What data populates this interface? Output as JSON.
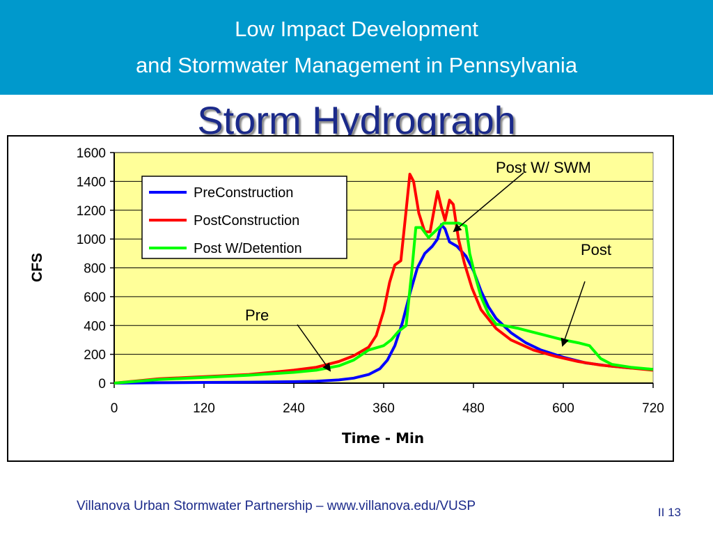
{
  "header": {
    "line1": "Low Impact Development",
    "line2": "and Stormwater Management in Pennsylvania"
  },
  "title": "Storm Hydrograph",
  "footer": "Villanova Urban Stormwater Partnership – www.villanova.edu/VUSP",
  "page_number": "II 13",
  "colors": {
    "header_bg": "#0099cc",
    "plot_bg": "#ffff99",
    "pre": "#0000ff",
    "post": "#ff0000",
    "detention": "#00ff00",
    "title": "#1b2a8a"
  },
  "chart_data": {
    "type": "line",
    "xlabel": "Time - Min",
    "ylabel": "CFS",
    "xlim": [
      0,
      720
    ],
    "ylim": [
      0,
      1600
    ],
    "xticks": [
      "0",
      "120",
      "240",
      "360",
      "480",
      "600",
      "720"
    ],
    "yticks": [
      "0",
      "200",
      "400",
      "600",
      "800",
      "1000",
      "1200",
      "1400",
      "1600"
    ],
    "grid": "horizontal",
    "legend_position": "top-left",
    "series": [
      {
        "name": "PreConstruction",
        "color": "#0000ff",
        "points": [
          [
            0,
            0
          ],
          [
            60,
            3
          ],
          [
            120,
            5
          ],
          [
            180,
            7
          ],
          [
            240,
            10
          ],
          [
            270,
            13
          ],
          [
            300,
            22
          ],
          [
            320,
            35
          ],
          [
            340,
            60
          ],
          [
            355,
            100
          ],
          [
            365,
            160
          ],
          [
            375,
            260
          ],
          [
            385,
            420
          ],
          [
            395,
            620
          ],
          [
            405,
            800
          ],
          [
            415,
            900
          ],
          [
            425,
            950
          ],
          [
            432,
            1000
          ],
          [
            437,
            1100
          ],
          [
            442,
            1070
          ],
          [
            448,
            980
          ],
          [
            458,
            950
          ],
          [
            470,
            880
          ],
          [
            480,
            780
          ],
          [
            490,
            640
          ],
          [
            500,
            530
          ],
          [
            510,
            450
          ],
          [
            530,
            350
          ],
          [
            550,
            280
          ],
          [
            570,
            230
          ],
          [
            600,
            180
          ],
          [
            630,
            140
          ],
          [
            660,
            120
          ],
          [
            690,
            105
          ],
          [
            720,
            95
          ]
        ]
      },
      {
        "name": "PostConstruction",
        "color": "#ff0000",
        "points": [
          [
            0,
            0
          ],
          [
            60,
            30
          ],
          [
            120,
            45
          ],
          [
            180,
            60
          ],
          [
            240,
            90
          ],
          [
            270,
            110
          ],
          [
            300,
            150
          ],
          [
            320,
            190
          ],
          [
            340,
            250
          ],
          [
            350,
            330
          ],
          [
            360,
            500
          ],
          [
            368,
            700
          ],
          [
            375,
            820
          ],
          [
            383,
            850
          ],
          [
            390,
            1200
          ],
          [
            395,
            1450
          ],
          [
            400,
            1400
          ],
          [
            407,
            1180
          ],
          [
            415,
            1050
          ],
          [
            422,
            1050
          ],
          [
            428,
            1220
          ],
          [
            432,
            1330
          ],
          [
            437,
            1220
          ],
          [
            442,
            1130
          ],
          [
            448,
            1270
          ],
          [
            453,
            1240
          ],
          [
            460,
            1000
          ],
          [
            468,
            830
          ],
          [
            478,
            660
          ],
          [
            490,
            510
          ],
          [
            510,
            380
          ],
          [
            530,
            300
          ],
          [
            560,
            230
          ],
          [
            590,
            185
          ],
          [
            620,
            150
          ],
          [
            650,
            125
          ],
          [
            680,
            110
          ],
          [
            720,
            90
          ]
        ]
      },
      {
        "name": "Post W/Detention",
        "color": "#00ff00",
        "points": [
          [
            0,
            0
          ],
          [
            60,
            25
          ],
          [
            120,
            40
          ],
          [
            180,
            55
          ],
          [
            240,
            75
          ],
          [
            270,
            90
          ],
          [
            300,
            120
          ],
          [
            320,
            160
          ],
          [
            340,
            230
          ],
          [
            360,
            260
          ],
          [
            370,
            300
          ],
          [
            380,
            360
          ],
          [
            390,
            400
          ],
          [
            398,
            800
          ],
          [
            403,
            1080
          ],
          [
            410,
            1080
          ],
          [
            420,
            1010
          ],
          [
            430,
            1060
          ],
          [
            440,
            1110
          ],
          [
            460,
            1110
          ],
          [
            470,
            1090
          ],
          [
            475,
            900
          ],
          [
            482,
            750
          ],
          [
            490,
            600
          ],
          [
            500,
            480
          ],
          [
            510,
            410
          ],
          [
            540,
            380
          ],
          [
            570,
            340
          ],
          [
            600,
            300
          ],
          [
            620,
            280
          ],
          [
            635,
            260
          ],
          [
            650,
            170
          ],
          [
            665,
            130
          ],
          [
            690,
            110
          ],
          [
            720,
            95
          ]
        ]
      }
    ],
    "annotations": [
      "Post W/ SWM",
      "Post",
      "Pre"
    ]
  }
}
